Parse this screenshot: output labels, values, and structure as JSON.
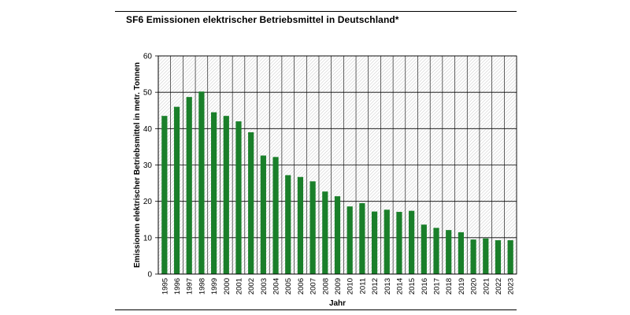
{
  "chart_data": {
    "type": "bar",
    "title": "SF6 Emissionen elektrischer Betriebsmittel in Deutschland*",
    "xlabel": "Jahr",
    "ylabel": "Emissionen elektrischer Betriebsmittel in metr. Tonnen",
    "ylim": [
      0,
      60
    ],
    "yticks": [
      "0",
      "10",
      "20",
      "30",
      "40",
      "50",
      "60"
    ],
    "grid": true,
    "legend": "none",
    "colors": {
      "bar": "#1a7f2a",
      "grid": "#000000",
      "hatch": "#c8c8c8"
    },
    "categories": [
      "1995",
      "1996",
      "1997",
      "1998",
      "1999",
      "2000",
      "2001",
      "2002",
      "2003",
      "2004",
      "2005",
      "2006",
      "2007",
      "2008",
      "2009",
      "2010",
      "2011",
      "2012",
      "2013",
      "2014",
      "2015",
      "2016",
      "2017",
      "2018",
      "2019",
      "2020",
      "2021",
      "2022",
      "2023"
    ],
    "series": [
      {
        "values": [
          43.5,
          46.0,
          48.7,
          50.2,
          44.5,
          43.5,
          42.0,
          39.0,
          32.6,
          32.2,
          27.2,
          26.7,
          25.5,
          22.7,
          21.4,
          18.6,
          19.5,
          17.2,
          17.7,
          17.1,
          17.4,
          13.6,
          12.7,
          12.1,
          11.5,
          9.5,
          9.8,
          9.3,
          9.3
        ]
      }
    ]
  }
}
